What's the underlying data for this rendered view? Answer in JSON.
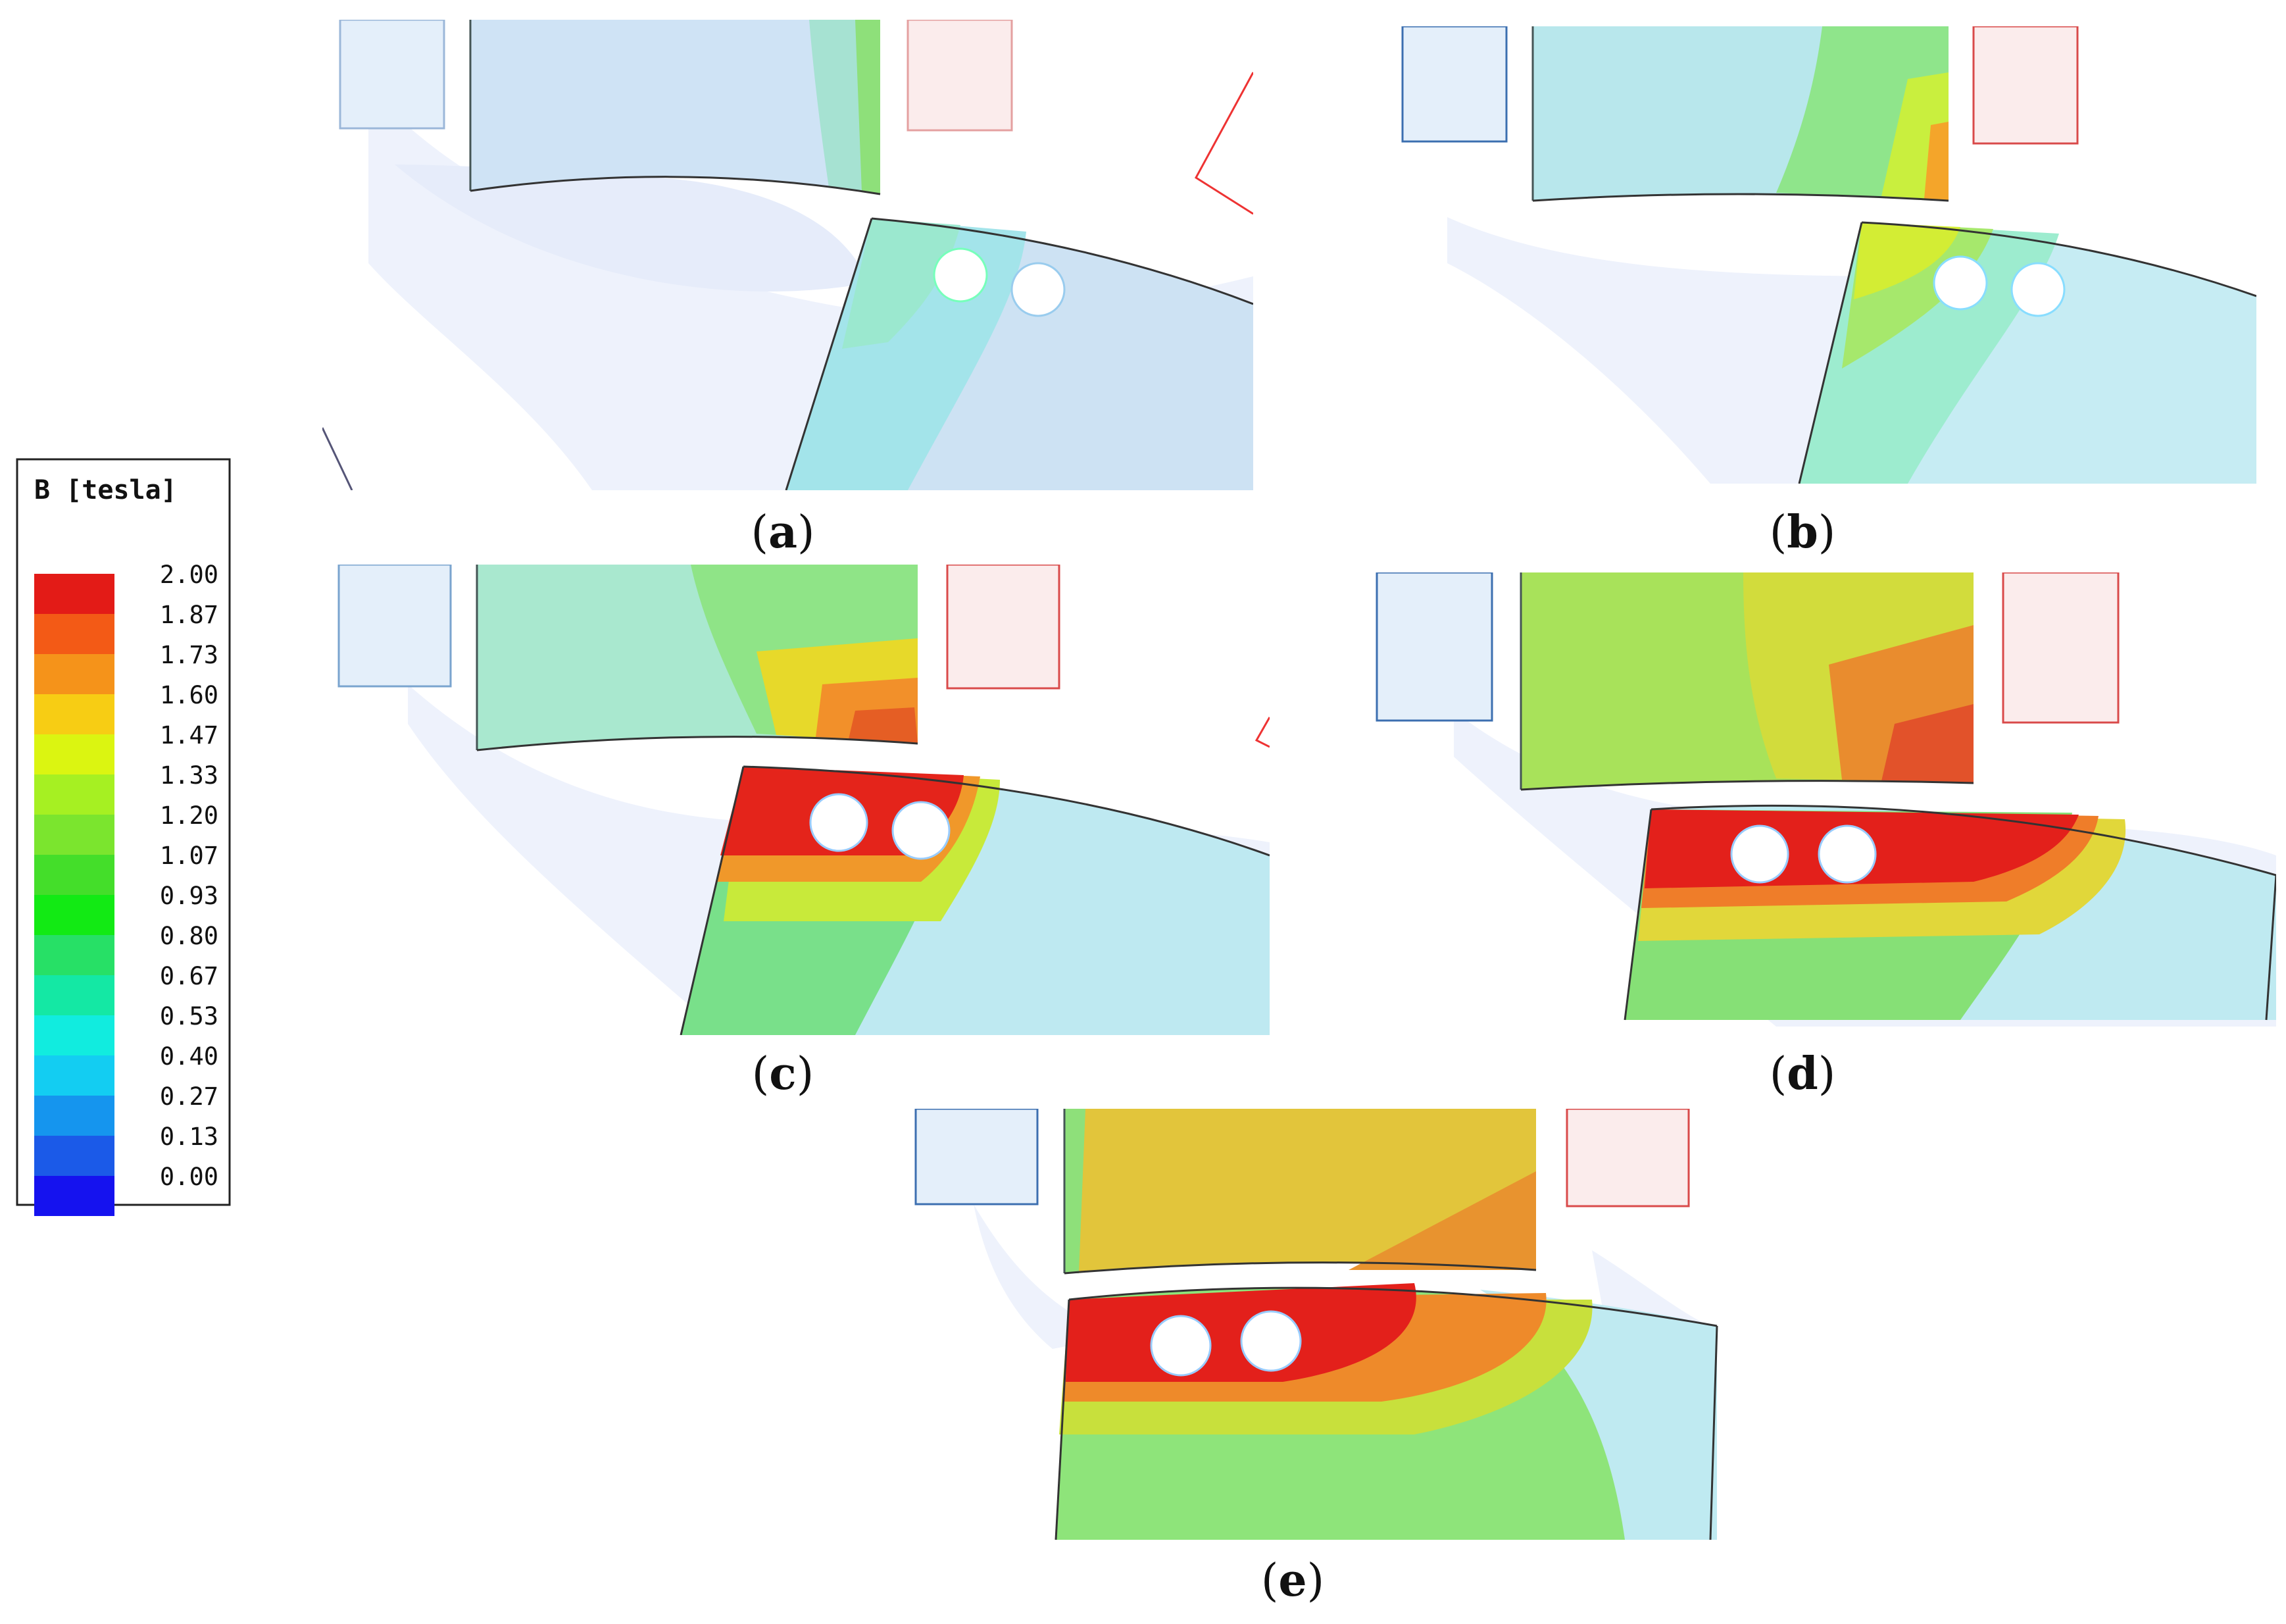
{
  "legend": {
    "title": "B [tesla]",
    "ticks": [
      "2.00",
      "1.87",
      "1.73",
      "1.60",
      "1.47",
      "1.33",
      "1.20",
      "1.07",
      "0.93",
      "0.80",
      "0.67",
      "0.53",
      "0.40",
      "0.27",
      "0.13",
      "0.00"
    ],
    "colors": [
      "#e31b17",
      "#f35a16",
      "#f5931a",
      "#f7cd14",
      "#dbf511",
      "#a6f022",
      "#7be52e",
      "#44de2a",
      "#12ea14",
      "#27e066",
      "#14e8a4",
      "#11ecdf",
      "#13cdf2",
      "#1595ee",
      "#1b5ae8",
      "#1512ef"
    ]
  },
  "panels": [
    {
      "id": "a",
      "caption_open": "(",
      "caption_letter": "a",
      "caption_close": ")"
    },
    {
      "id": "b",
      "caption_open": "(",
      "caption_letter": "b",
      "caption_close": ")"
    },
    {
      "id": "c",
      "caption_open": "(",
      "caption_letter": "c",
      "caption_close": ")"
    },
    {
      "id": "d",
      "caption_open": "(",
      "caption_letter": "d",
      "caption_close": ")"
    },
    {
      "id": "e",
      "caption_open": "(",
      "caption_letter": "e",
      "caption_close": ")"
    }
  ]
}
